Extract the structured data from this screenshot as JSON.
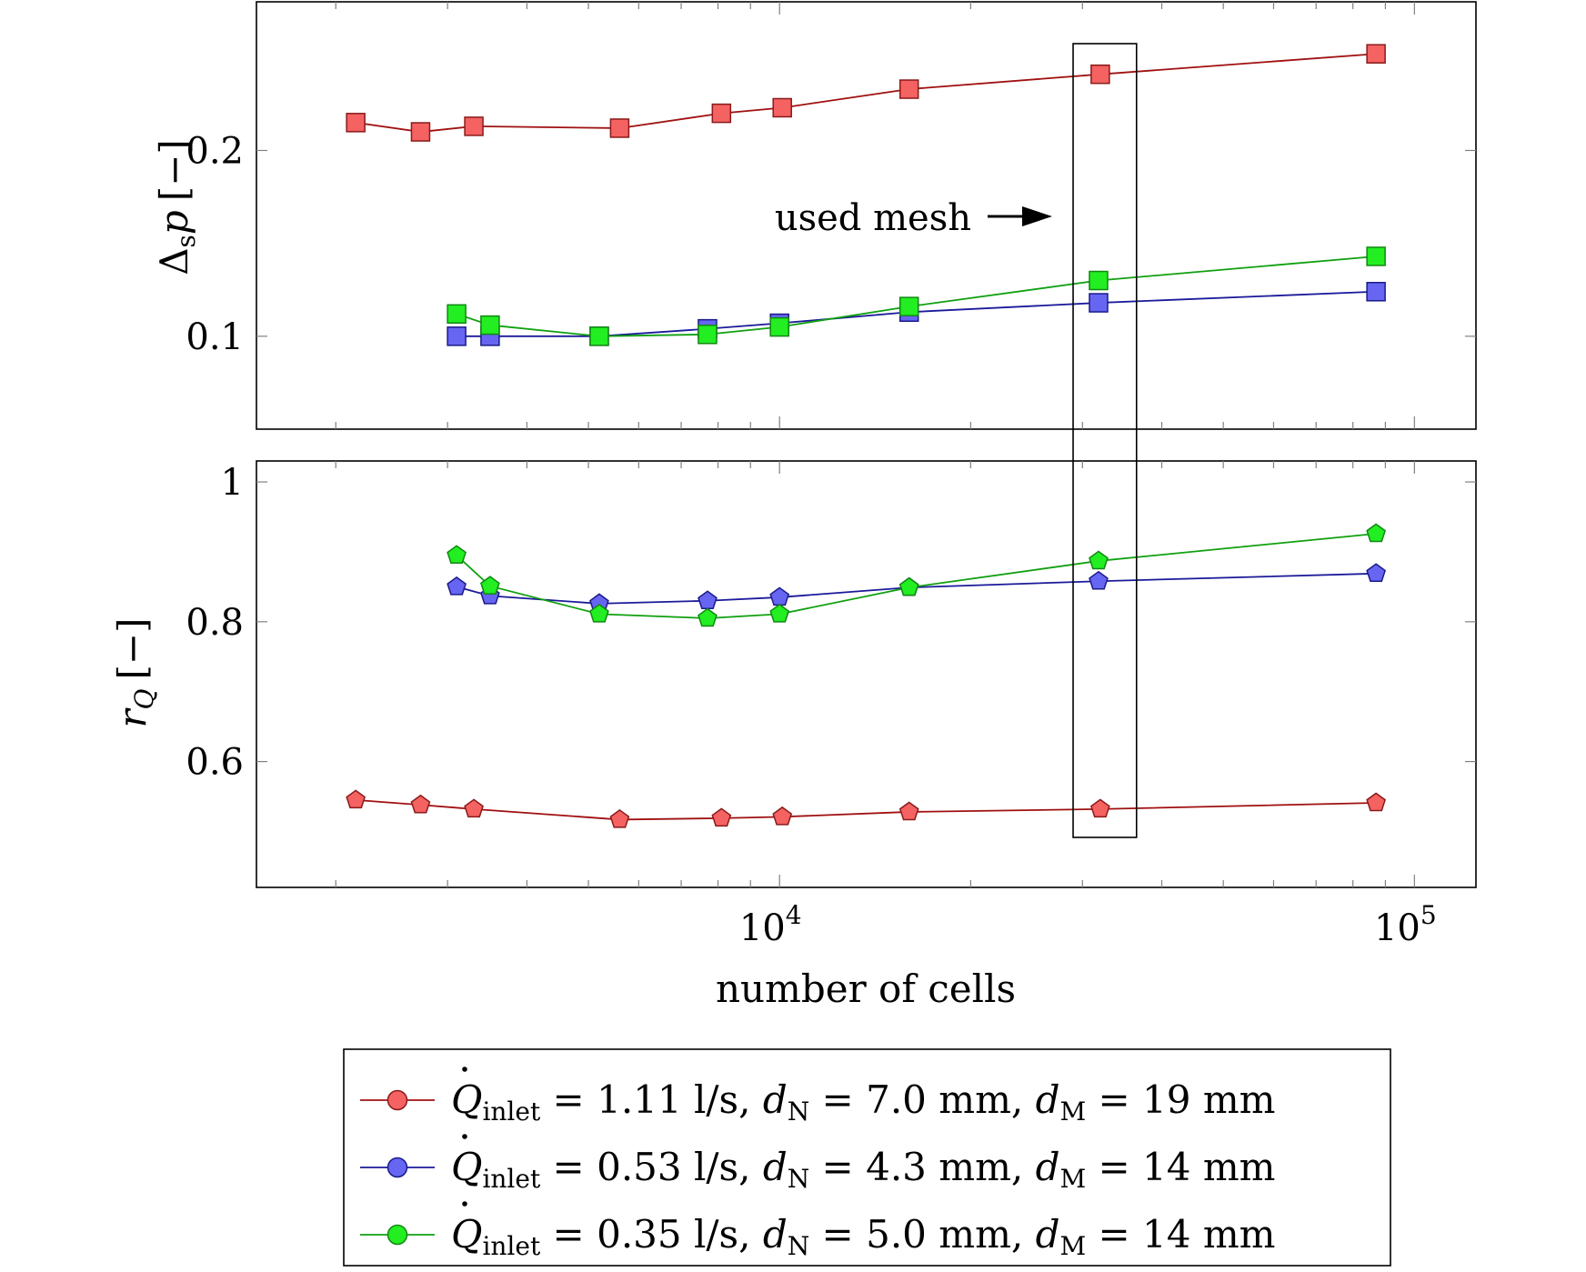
{
  "chart_data": [
    {
      "type": "line",
      "panel": "top",
      "ylabel": "Δsp [−]",
      "ylabel_main": "Δ",
      "ylabel_sub": "s",
      "ylabel_var": "p",
      "ylabel_unit": "[−]",
      "xscale": "log",
      "xlim": [
        1500,
        125000
      ],
      "ylim": [
        0.05,
        0.28
      ],
      "yticks": [
        0.1,
        0.2
      ],
      "ytick_labels": [
        "0.1",
        "0.2"
      ],
      "marker": "square",
      "series": [
        {
          "name": "red",
          "x": [
            2150,
            2720,
            3300,
            5600,
            8100,
            10100,
            16000,
            32000,
            87000
          ],
          "y": [
            0.215,
            0.21,
            0.213,
            0.212,
            0.22,
            0.223,
            0.233,
            0.241,
            0.252
          ]
        },
        {
          "name": "blue",
          "x": [
            3100,
            3500,
            5200,
            7700,
            10000,
            16000,
            31800,
            87000
          ],
          "y": [
            0.1,
            0.1,
            0.1,
            0.104,
            0.107,
            0.113,
            0.118,
            0.124
          ]
        },
        {
          "name": "green",
          "x": [
            3100,
            3500,
            5200,
            7700,
            10000,
            16000,
            31800,
            87000
          ],
          "y": [
            0.112,
            0.106,
            0.1,
            0.101,
            0.105,
            0.116,
            0.13,
            0.143
          ]
        }
      ],
      "annotation": "used mesh"
    },
    {
      "type": "line",
      "panel": "bottom",
      "ylabel": "rQ [−]",
      "ylabel_var": "r",
      "ylabel_sub": "Q",
      "ylabel_unit": "[−]",
      "xscale": "log",
      "xlim": [
        1500,
        125000
      ],
      "ylim": [
        0.42,
        1.03
      ],
      "yticks": [
        0.6,
        0.8,
        1.0
      ],
      "ytick_labels": [
        "0.6",
        "0.8",
        "1"
      ],
      "xticks": [
        10000,
        100000
      ],
      "xtick_base": "10",
      "xtick_exponents": [
        "4",
        "5"
      ],
      "xlabel": "number of cells",
      "marker": "pentagon",
      "series": [
        {
          "name": "red",
          "x": [
            2150,
            2720,
            3300,
            5600,
            8100,
            10100,
            16000,
            32000,
            87000
          ],
          "y": [
            0.545,
            0.538,
            0.532,
            0.517,
            0.519,
            0.521,
            0.528,
            0.532,
            0.541
          ]
        },
        {
          "name": "blue",
          "x": [
            3100,
            3500,
            5200,
            7700,
            10000,
            16000,
            31800,
            87000
          ],
          "y": [
            0.85,
            0.837,
            0.826,
            0.83,
            0.835,
            0.849,
            0.858,
            0.869
          ]
        },
        {
          "name": "green",
          "x": [
            3100,
            3500,
            5200,
            7700,
            10000,
            16000,
            31800,
            87000
          ],
          "y": [
            0.895,
            0.851,
            0.811,
            0.805,
            0.811,
            0.849,
            0.887,
            0.926
          ]
        }
      ]
    }
  ],
  "highlight": {
    "label": "used mesh",
    "x_range": [
      29000,
      36500
    ]
  },
  "legend": {
    "placement": "bottom-center",
    "entries": [
      {
        "series": "red",
        "q_sym": "Q",
        "q_sub": "inlet",
        "q_val": "= 1.11 l/s,",
        "dn_sym": "d",
        "dn_sub": "N",
        "dn_val": "= 7.0 mm,",
        "dm_sym": "d",
        "dm_sub": "M",
        "dm_val": "= 19 mm"
      },
      {
        "series": "blue",
        "q_sym": "Q",
        "q_sub": "inlet",
        "q_val": "= 0.53 l/s,",
        "dn_sym": "d",
        "dn_sub": "N",
        "dn_val": "= 4.3 mm,",
        "dm_sym": "d",
        "dm_sub": "M",
        "dm_val": "= 14 mm"
      },
      {
        "series": "green",
        "q_sym": "Q",
        "q_sub": "inlet",
        "q_val": "= 0.35 l/s,",
        "dn_sym": "d",
        "dn_sub": "N",
        "dn_val": "= 5.0 mm,",
        "dm_sym": "d",
        "dm_sub": "M",
        "dm_val": "= 14 mm"
      }
    ]
  },
  "colors": {
    "red": {
      "line": "#a01010",
      "fill": "#f46262",
      "stroke": "#8a1a1a"
    },
    "blue": {
      "line": "#1a1a9a",
      "fill": "#6666f2",
      "stroke": "#1a1a8a"
    },
    "green": {
      "line": "#10a010",
      "fill": "#22ee22",
      "stroke": "#118811"
    }
  }
}
